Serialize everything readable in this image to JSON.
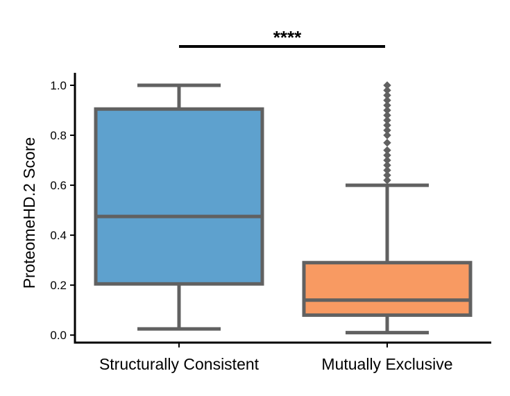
{
  "chart_data": {
    "type": "box",
    "title": "",
    "xlabel": "",
    "ylabel": "ProteomeHD.2 Score",
    "ylim": [
      -0.03,
      1.05
    ],
    "yticks": [
      0.0,
      0.2,
      0.4,
      0.6,
      0.8,
      1.0
    ],
    "ytick_labels": [
      "0.0",
      "0.2",
      "0.4",
      "0.6",
      "0.8",
      "1.0"
    ],
    "grid": false,
    "categories": [
      "Structurally Consistent",
      "Mutually Exclusive"
    ],
    "boxes": [
      {
        "category": "Structurally Consistent",
        "whisker_low": 0.025,
        "q1": 0.205,
        "median": 0.475,
        "q3": 0.905,
        "whisker_high": 1.0,
        "outliers": [],
        "color": "#5ea1ce"
      },
      {
        "category": "Mutually Exclusive",
        "whisker_low": 0.01,
        "q1": 0.08,
        "median": 0.14,
        "q3": 0.29,
        "whisker_high": 0.6,
        "outliers": [
          0.62,
          0.64,
          0.66,
          0.68,
          0.7,
          0.72,
          0.74,
          0.77,
          0.8,
          0.82,
          0.84,
          0.86,
          0.88,
          0.9,
          0.92,
          0.94,
          0.96,
          0.98,
          1.0
        ],
        "color": "#f89a62"
      }
    ],
    "significance": {
      "label": "****",
      "between": [
        "Structurally Consistent",
        "Mutually Exclusive"
      ]
    },
    "line_color": "#616161"
  }
}
